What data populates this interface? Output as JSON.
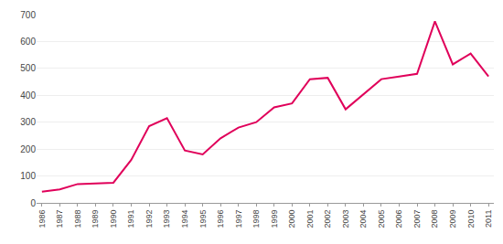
{
  "chart_data": {
    "type": "line",
    "x": [
      1986,
      1987,
      1988,
      1989,
      1990,
      1991,
      1992,
      1993,
      1994,
      1995,
      1996,
      1997,
      1998,
      1999,
      2000,
      2001,
      2002,
      2003,
      2004,
      2005,
      2006,
      2007,
      2008,
      2009,
      2010,
      2011
    ],
    "values": [
      42,
      50,
      70,
      72,
      75,
      160,
      285,
      315,
      195,
      180,
      240,
      280,
      300,
      355,
      370,
      460,
      465,
      348,
      405,
      460,
      470,
      480,
      675,
      515,
      555,
      470
    ],
    "color": "#e0005a",
    "xlim": [
      1985.7,
      2011.3
    ],
    "xticks": [
      1986,
      1987,
      1988,
      1989,
      1990,
      1991,
      1992,
      1993,
      1994,
      1995,
      1996,
      1997,
      1998,
      1999,
      2000,
      2001,
      2002,
      2003,
      2004,
      2005,
      2006,
      2007,
      2008,
      2009,
      2010,
      2011
    ],
    "ylim": [
      0,
      700
    ],
    "yticks": [
      0,
      100,
      200,
      300,
      400,
      500,
      600,
      700
    ],
    "grid": true
  }
}
